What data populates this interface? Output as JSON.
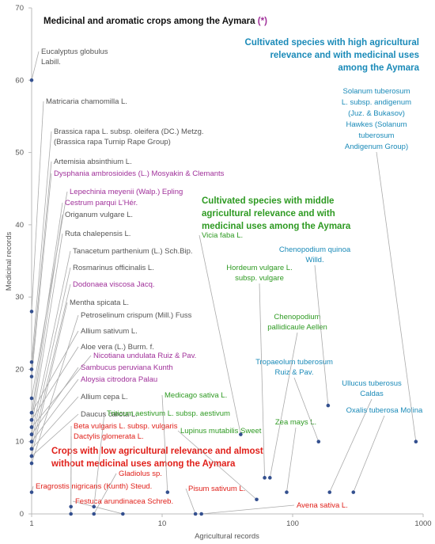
{
  "chart_data": {
    "type": "scatter",
    "title": "Medicinal and aromatic crops among the Aymara",
    "title_note": "(*)",
    "title_note_color": "#a0309a",
    "xlabel": "Agricultural records",
    "ylabel": "Medicinal records",
    "xscale": "log",
    "xlim": [
      1,
      1000
    ],
    "ylim": [
      0,
      70
    ],
    "xticks": [
      1,
      10,
      100,
      1000
    ],
    "yticks": [
      0,
      10,
      20,
      30,
      40,
      50,
      60,
      70
    ],
    "point_color": "#34508f",
    "groups": [
      {
        "lines": [
          "Cultivated species with high agricultural",
          "relevance and with medicinal uses",
          "among  the Aymara"
        ],
        "color": "#1a8ab8"
      },
      {
        "lines": [
          "Cultivated species with middle",
          "agricultural relevance and with",
          "medicinal uses  among  the Aymara"
        ],
        "color": "#2e9a22"
      },
      {
        "lines": [
          "Crops with low agricultural relevance and almost",
          "without medicinal uses among the Aymara"
        ],
        "color": "#e0201a"
      }
    ],
    "x": [
      1,
      1,
      1,
      1,
      1,
      1,
      1,
      1,
      1,
      1,
      1,
      1,
      1,
      1,
      1,
      1,
      1,
      1,
      1,
      1,
      1,
      2,
      2,
      1,
      3,
      5,
      18,
      20,
      11,
      3,
      53,
      40,
      61,
      67,
      90,
      158,
      187,
      192,
      292,
      880
    ],
    "y": [
      60,
      28,
      21,
      20,
      19,
      16,
      14,
      13,
      12,
      11,
      10,
      9,
      8,
      7,
      14,
      13,
      12,
      11,
      10,
      9,
      8,
      1,
      0,
      3,
      0,
      0,
      0,
      0,
      3,
      1,
      2,
      11,
      5,
      5,
      3,
      10,
      15,
      3,
      3,
      10
    ],
    "labels": [
      [
        "Eucalyptus globulus",
        "Labill."
      ],
      [
        "Matricaria chamomilla L."
      ],
      [
        "Brassica rapa L. subsp. oleifera (DC.) Metzg.",
        "(Brassica rapa Turnip Rape Group)"
      ],
      [
        "Artemisia absinthium L."
      ],
      [
        "Dysphania ambrosioides (L.) Mosyakin & Clemants"
      ],
      [
        "Lepechinia meyenii (Walp.) Epling"
      ],
      [
        "Cestrum parqui L'Hér."
      ],
      [
        "Origanum vulgare L."
      ],
      [
        "Ruta chalepensis L."
      ],
      [
        "Tanacetum parthenium (L.) Sch.Bip."
      ],
      [
        "Rosmarinus officinalis L."
      ],
      [
        "Dodonaea viscosa Jacq."
      ],
      [
        "Mentha spicata L."
      ],
      [
        "Petroselinum crispum (Mill.) Fuss"
      ],
      [
        "Allium sativum L."
      ],
      [
        "Aloe vera (L.) Burm. f."
      ],
      [
        "Nicotiana undulata Ruiz & Pav."
      ],
      [
        "Sambucus peruviana Kunth"
      ],
      [
        "Aloysia citrodora Palau"
      ],
      [
        "Allium cepa L."
      ],
      [
        "Daucus carota L."
      ],
      [
        "Beta vulgaris L. subsp. vulgaris"
      ],
      [
        "Dactylis glomerata L."
      ],
      [
        "Eragrostis nigricans (Kunth) Steud."
      ],
      [
        "Gladiolus sp."
      ],
      [
        "Festuca arundinacea Schreb."
      ],
      [
        "Pisum sativum L."
      ],
      [
        "Avena sativa L."
      ],
      [
        "Medicago sativa L."
      ],
      [
        "Triticum aestivum L. subsp. aestivum"
      ],
      [
        "Lupinus mutabilis Sweet"
      ],
      [
        "Vicia faba L."
      ],
      [
        "Hordeum vulgare L.",
        "subsp. vulgare"
      ],
      [
        "Chenopodium",
        "pallidicaule Aellen"
      ],
      [
        "Zea mays L."
      ],
      [
        "Tropaeolum tuberosum",
        "Ruiz & Pav."
      ],
      [
        "Chenopodium quinoa",
        "Willd."
      ],
      [
        "Ullucus tuberosus",
        "Caldas"
      ],
      [
        "Oxalis tuberosa Molina"
      ],
      [
        "Solanum tuberosum",
        "L. subsp. andigenum",
        "(Juz. & Bukasov)",
        "Hawkes (Solanum",
        "tuberosum",
        "Andigenum Group)"
      ]
    ],
    "label_colors": [
      "#555",
      "#555",
      "#555",
      "#555",
      "#a0309a",
      "#a0309a",
      "#a0309a",
      "#555",
      "#555",
      "#555",
      "#555",
      "#a0309a",
      "#555",
      "#555",
      "#555",
      "#555",
      "#a0309a",
      "#a0309a",
      "#a0309a",
      "#555",
      "#555",
      "#e0201a",
      "#e0201a",
      "#e0201a",
      "#e0201a",
      "#e0201a",
      "#e0201a",
      "#e0201a",
      "#2e9a22",
      "#2e9a22",
      "#2e9a22",
      "#2e9a22",
      "#2e9a22",
      "#2e9a22",
      "#2e9a22",
      "#1a8ab8",
      "#1a8ab8",
      "#1a8ab8",
      "#1a8ab8",
      "#1a8ab8"
    ]
  }
}
